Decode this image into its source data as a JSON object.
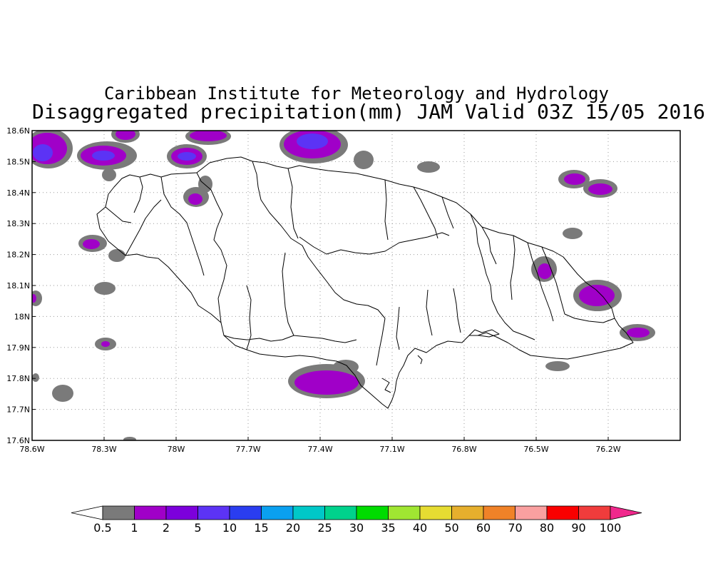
{
  "title": {
    "line1": "Caribbean Institute for Meteorology and Hydrology",
    "line2": "Disaggregated precipitation(mm) JAM Valid 03Z 15/05 2016"
  },
  "map": {
    "region": "Jamaica",
    "lon_range": [
      -78.6,
      -75.9
    ],
    "lat_range": [
      17.6,
      18.6
    ],
    "y_tick_labels": [
      "18.6N",
      "18.5N",
      "18.4N",
      "18.3N",
      "18.2N",
      "18.1N",
      "18N",
      "17.9N",
      "17.8N",
      "17.7N",
      "17.6N"
    ],
    "x_tick_labels": [
      "78.6W",
      "78.3W",
      "78W",
      "77.7W",
      "77.4W",
      "77.1W",
      "76.8W",
      "76.5W",
      "76.2W"
    ],
    "grid": "dotted",
    "colors": {
      "land_outline": "#000000",
      "frame": "#000000",
      "grid": "#9a9a9a"
    }
  },
  "colorbar": {
    "unit": "mm",
    "bins": [
      {
        "label": "0.5",
        "color": "#ffffff"
      },
      {
        "label": "1",
        "color": "#7a7a7a"
      },
      {
        "label": "2",
        "color": "#a000c8"
      },
      {
        "label": "5",
        "color": "#7c00dc"
      },
      {
        "label": "10",
        "color": "#5c33f5"
      },
      {
        "label": "15",
        "color": "#2a3df0"
      },
      {
        "label": "20",
        "color": "#0aa0f0"
      },
      {
        "label": "25",
        "color": "#00c8c8"
      },
      {
        "label": "30",
        "color": "#00d28c"
      },
      {
        "label": "35",
        "color": "#00dc00"
      },
      {
        "label": "40",
        "color": "#a0e632"
      },
      {
        "label": "50",
        "color": "#e6dc32"
      },
      {
        "label": "60",
        "color": "#e6af2d"
      },
      {
        "label": "70",
        "color": "#f08228"
      },
      {
        "label": "80",
        "color": "#faa0a0"
      },
      {
        "label": "90",
        "color": "#fa0000"
      },
      {
        "label": "100",
        "color": "#f03c3c"
      },
      {
        "label": "",
        "color": "#f0288c"
      }
    ]
  }
}
